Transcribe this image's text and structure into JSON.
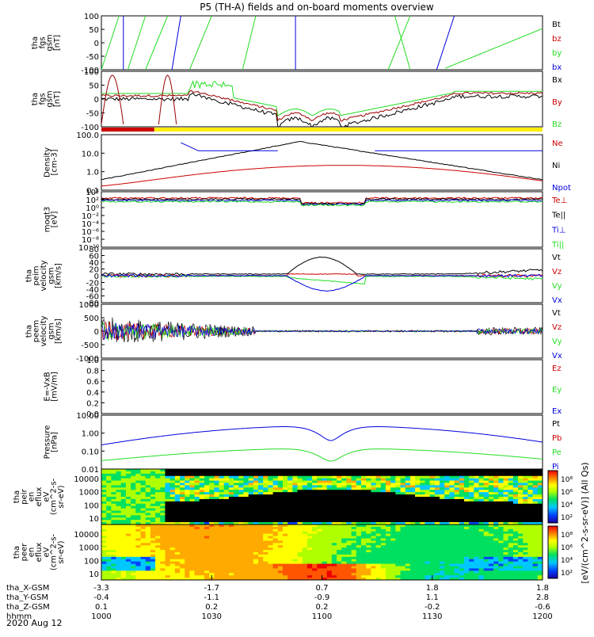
{
  "title": "P5 (TH-A) fields and on-board moments overview",
  "colors": {
    "black": "#000000",
    "red": "#cc0000",
    "darkred": "#990000",
    "green": "#22dd22",
    "blue": "#0000dd",
    "yellow": "#ffee00",
    "axis": "#000000"
  },
  "footer": {
    "rows": [
      {
        "label": "tha_X-GSM",
        "values": [
          "-3.3",
          "-1.7",
          "0.7",
          "1.8",
          "1.8"
        ]
      },
      {
        "label": "tha_Y-GSM",
        "values": [
          "-0.4",
          "-1.1",
          "-0.9",
          "1.1",
          "2.8"
        ]
      },
      {
        "label": "tha_Z-GSM",
        "values": [
          "0.1",
          "0.2",
          "0.2",
          "-0.2",
          "-0.6"
        ]
      },
      {
        "label": "hhmm",
        "values": [
          "1000",
          "1030",
          "1100",
          "1130",
          "1200"
        ]
      }
    ],
    "date": "2020 Aug 12"
  },
  "colorbar_label": "[eV/(cm^2-s-sr-eV)] (All Qs)",
  "chart_data": [
    {
      "type": "line",
      "id": "fgs",
      "ylabel": [
        "tha",
        "fgs",
        "gsm",
        "[nT]"
      ],
      "ylim": [
        -100,
        100
      ],
      "ticks": [
        "100",
        "50",
        "0",
        "-50",
        "-100"
      ],
      "legend": [
        {
          "name": "Bt",
          "color": "#000000"
        },
        {
          "name": "bz",
          "color": "#cc0000"
        },
        {
          "name": "by",
          "color": "#22dd22"
        },
        {
          "name": "bx",
          "color": "#0000dd"
        }
      ]
    },
    {
      "type": "line",
      "id": "fgs-dsl",
      "ylabel": [
        "tha",
        "fgs",
        "gsm",
        "[nT]"
      ],
      "ylim": [
        -100,
        100
      ],
      "ticks": [
        "100",
        "50",
        "0",
        "-50",
        "-100"
      ],
      "legend": [
        {
          "name": "Bx",
          "color": "#000000"
        },
        {
          "name": "By",
          "color": "#cc0000"
        },
        {
          "name": "Bz",
          "color": "#22dd22"
        }
      ]
    },
    {
      "type": "line",
      "id": "density",
      "ylabel": [
        "Density",
        "[cm-3]"
      ],
      "scale": "log",
      "ticks": [
        "100.0",
        "10.0",
        "1.0",
        "0.1"
      ],
      "legend": [
        {
          "name": "Ne",
          "color": "#cc0000"
        },
        {
          "name": "Ni",
          "color": "#000000"
        },
        {
          "name": "Npot",
          "color": "#0000dd"
        }
      ]
    },
    {
      "type": "line",
      "id": "temperature",
      "ylabel": [
        "moqt3",
        "[eV]"
      ],
      "scale": "log",
      "ticks": [
        "10⁴",
        "10²",
        "10⁰",
        "10⁻²",
        "10⁻⁴",
        "10⁻⁶",
        "10⁻⁸",
        "10⁻¹⁰"
      ],
      "legend": [
        {
          "name": "Te⊥",
          "color": "#cc0000"
        },
        {
          "name": "Te||",
          "color": "#000000"
        },
        {
          "name": "Ti⊥",
          "color": "#0000dd"
        },
        {
          "name": "Ti||",
          "color": "#22dd22"
        }
      ]
    },
    {
      "type": "line",
      "id": "ion-velocity",
      "ylabel": [
        "tha",
        "peim",
        "velocity",
        "gsm",
        "[km/s]"
      ],
      "ylim": [
        -80,
        80
      ],
      "ticks": [
        "80",
        "60",
        "40",
        "20",
        "0",
        "-20",
        "-40",
        "-60",
        "-80"
      ],
      "legend": [
        {
          "name": "Vt",
          "color": "#000000"
        },
        {
          "name": "Vz",
          "color": "#cc0000"
        },
        {
          "name": "Vy",
          "color": "#22dd22"
        },
        {
          "name": "Vx",
          "color": "#0000dd"
        }
      ]
    },
    {
      "type": "line",
      "id": "electron-velocity",
      "ylabel": [
        "tha",
        "peem",
        "velocity",
        "gsm",
        "[km/s]"
      ],
      "ylim": [
        -1000,
        1000
      ],
      "ticks": [
        "1000",
        "500",
        "0",
        "-500",
        "-1000"
      ],
      "legend": [
        {
          "name": "Vt",
          "color": "#000000"
        },
        {
          "name": "Vz",
          "color": "#cc0000"
        },
        {
          "name": "Vy",
          "color": "#22dd22"
        },
        {
          "name": "Vx",
          "color": "#0000dd"
        }
      ]
    },
    {
      "type": "line",
      "id": "efield",
      "ylabel": [
        "E=-VxB",
        "[mV/m]"
      ],
      "ylim": [
        0,
        1
      ],
      "ticks": [
        "1.0",
        "0.8",
        "0.6",
        "0.4",
        "0.2",
        "0.0"
      ],
      "legend": [
        {
          "name": "Ez",
          "color": "#cc0000"
        },
        {
          "name": "Ey",
          "color": "#22dd22"
        },
        {
          "name": "Ex",
          "color": "#0000dd"
        }
      ]
    },
    {
      "type": "line",
      "id": "pressure",
      "ylabel": [
        "Pressure",
        "[nPa]"
      ],
      "scale": "log",
      "ticks": [
        "10.00",
        "1.00",
        "0.10",
        "0.01"
      ],
      "legend": [
        {
          "name": "Pt",
          "color": "#000000"
        },
        {
          "name": "Pb",
          "color": "#cc0000"
        },
        {
          "name": "Pe",
          "color": "#22dd22"
        },
        {
          "name": "Pi",
          "color": "#0000dd"
        }
      ]
    },
    {
      "type": "heatmap",
      "id": "ion-spectrogram",
      "ylabel": [
        "tha",
        "peir",
        "en",
        "eflux",
        "eV",
        "(cm^2-s-",
        "sr-eV)"
      ],
      "scale": "log",
      "ticks": [
        "10000",
        "1000",
        "100",
        "10"
      ],
      "colorbar_ticks": [
        "10⁸",
        "10⁶",
        "10⁴",
        "10²"
      ]
    },
    {
      "type": "heatmap",
      "id": "electron-spectrogram",
      "ylabel": [
        "tha",
        "peer",
        "en",
        "eflux",
        "eV",
        "(cm^2-s-",
        "sr-eV)"
      ],
      "scale": "log",
      "ticks": [
        "10000",
        "1000",
        "100",
        "10"
      ],
      "colorbar_ticks": [
        "10⁸",
        "10⁶",
        "10⁴",
        "10²"
      ]
    }
  ]
}
